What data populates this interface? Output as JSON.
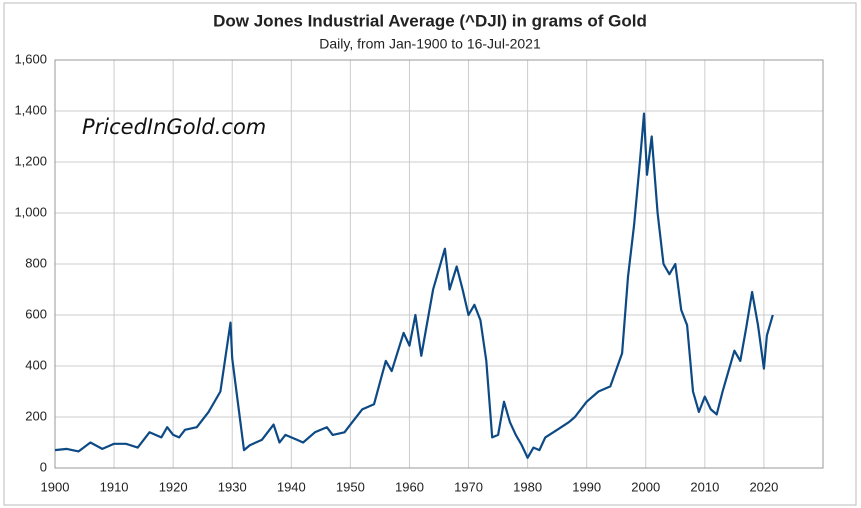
{
  "chart_data": {
    "type": "line",
    "title": "Dow Jones Industrial Average (^DJI) in grams of Gold",
    "subtitle": "Daily, from Jan-1900 to 16-Jul-2021",
    "annotations": [
      "PricedInGold.com"
    ],
    "color": "#0d4a85",
    "grid": true,
    "xlim": [
      1900,
      2030
    ],
    "xticks": [
      1900,
      1910,
      1920,
      1930,
      1940,
      1950,
      1960,
      1970,
      1980,
      1990,
      2000,
      2010,
      2020
    ],
    "ylim": [
      0,
      1600
    ],
    "yticks": [
      0,
      200,
      400,
      600,
      800,
      {
        "value": 1000,
        "label": "1,000"
      },
      {
        "value": 1200,
        "label": "1,200"
      },
      {
        "value": 1400,
        "label": "1,400"
      },
      {
        "value": 1600,
        "label": "1,600"
      }
    ],
    "x": [
      1900,
      1902,
      1904,
      1906,
      1908,
      1910,
      1912,
      1914,
      1916,
      1918,
      1919,
      1920,
      1921,
      1922,
      1924,
      1926,
      1928,
      1929.7,
      1930,
      1931,
      1932,
      1933,
      1935,
      1937,
      1938,
      1939,
      1941,
      1942,
      1944,
      1946,
      1947,
      1949,
      1950,
      1952,
      1954,
      1956,
      1957,
      1959,
      1960,
      1961,
      1962,
      1964,
      1966,
      1966.8,
      1968,
      1969,
      1970,
      1971,
      1972,
      1973,
      1974,
      1975,
      1976,
      1977,
      1978,
      1979,
      1980,
      1981,
      1982,
      1983,
      1985,
      1987,
      1988,
      1990,
      1992,
      1994,
      1996,
      1997,
      1998,
      1999,
      1999.7,
      2000.2,
      2001,
      2002,
      2003,
      2004,
      2005,
      2006,
      2007,
      2008,
      2009,
      2010,
      2011,
      2012,
      2013,
      2014,
      2015,
      2016,
      2017,
      2018,
      2019,
      2020,
      2020.5,
      2021.5
    ],
    "values": [
      70,
      75,
      65,
      100,
      75,
      95,
      95,
      80,
      140,
      120,
      160,
      130,
      120,
      150,
      160,
      220,
      300,
      570,
      430,
      250,
      70,
      90,
      110,
      170,
      100,
      130,
      110,
      100,
      140,
      160,
      130,
      140,
      170,
      230,
      250,
      420,
      380,
      530,
      480,
      600,
      440,
      700,
      860,
      700,
      790,
      700,
      600,
      640,
      580,
      420,
      120,
      130,
      260,
      180,
      130,
      90,
      40,
      80,
      70,
      120,
      150,
      180,
      200,
      260,
      300,
      320,
      450,
      750,
      950,
      1200,
      1390,
      1150,
      1300,
      1000,
      800,
      760,
      800,
      620,
      560,
      300,
      220,
      280,
      230,
      210,
      300,
      380,
      460,
      420,
      550,
      690,
      560,
      390,
      520,
      600
    ]
  }
}
